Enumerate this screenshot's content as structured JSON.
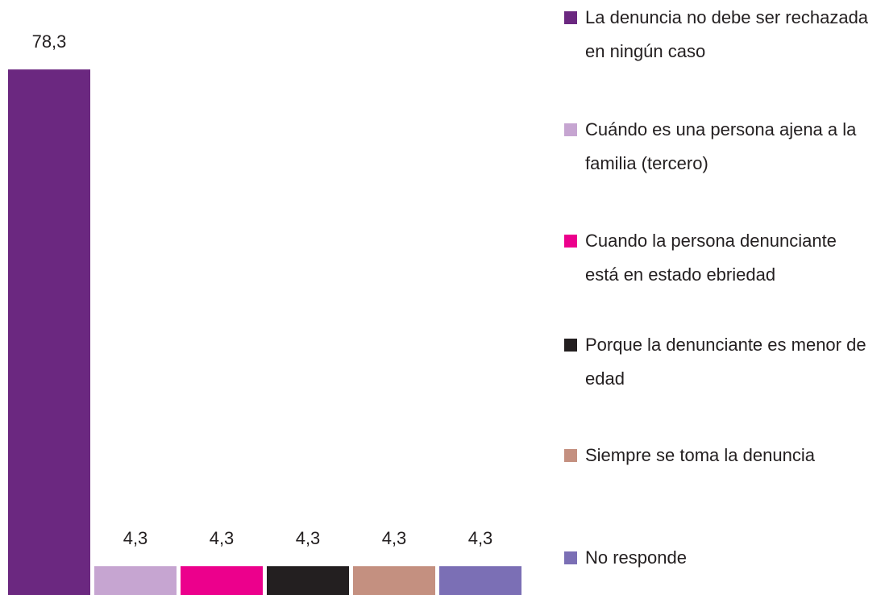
{
  "chart_data": {
    "type": "bar",
    "categories": [
      "La denuncia no debe ser rechazada en ningún caso",
      "Cuándo es una persona ajena a la familia (tercero)",
      "Cuando la persona denunciante está en estado ebriedad",
      "Porque la denunciante es menor de edad",
      "Siempre se toma la denuncia",
      "No responde"
    ],
    "values": [
      78.3,
      4.3,
      4.3,
      4.3,
      4.3,
      4.3
    ],
    "value_labels": [
      "78,3",
      "4,3",
      "4,3",
      "4,3",
      "4,3",
      "4,3"
    ],
    "colors": [
      "#6b2880",
      "#c6a5d1",
      "#ec008c",
      "#231f20",
      "#c49080",
      "#7b6fb5"
    ],
    "ylim": [
      0,
      80
    ],
    "legend": "right"
  }
}
